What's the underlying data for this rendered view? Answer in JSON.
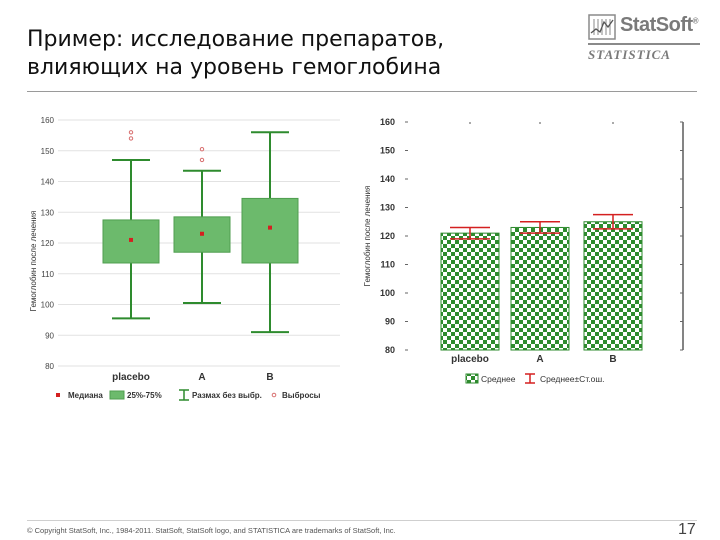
{
  "header": {
    "title_line1": "Пример: исследование препаратов,",
    "title_line2": "влияющих на уровень гемоглобина"
  },
  "logo": {
    "brand": "StatSoft",
    "registered": "®",
    "product": "STATISTICA"
  },
  "footer": {
    "copyright": "© Copyright StatSoft, Inc., 1984-2011. StatSoft, StatSoft logo, and STATISTICA are trademarks of StatSoft, Inc.",
    "page_number": "17"
  },
  "colors": {
    "green": "#2e8b2e",
    "box_fill": "#6cba6c",
    "red": "#d42020",
    "outlier": "#d87070"
  },
  "chart_data": [
    {
      "type": "box",
      "ylabel": "Гемоглобин после лечения",
      "ylim": [
        80,
        160
      ],
      "yticks": [
        80,
        90,
        100,
        110,
        120,
        130,
        140,
        150,
        160
      ],
      "categories": [
        "placebo",
        "A",
        "B"
      ],
      "boxes": [
        {
          "category": "placebo",
          "min": 95.5,
          "q1": 113.5,
          "median": 121,
          "q3": 127.5,
          "max": 147,
          "outliers": [
            154,
            156
          ]
        },
        {
          "category": "A",
          "min": 100.5,
          "q1": 117,
          "median": 123,
          "q3": 128.5,
          "max": 143.5,
          "outliers": [
            147,
            150.5
          ]
        },
        {
          "category": "B",
          "min": 91,
          "q1": 113.5,
          "median": 125,
          "q3": 134.5,
          "max": 156,
          "outliers": []
        }
      ],
      "legend": {
        "median": "Медиана",
        "box": "25%-75%",
        "range": "Размах без выбр.",
        "outliers": "Выбросы"
      }
    },
    {
      "type": "bar",
      "ylabel": "Гемоглобин после лечения",
      "ylim": [
        80,
        160
      ],
      "yticks": [
        80,
        90,
        100,
        110,
        120,
        130,
        140,
        150,
        160
      ],
      "categories": [
        "placebo",
        "A",
        "B"
      ],
      "values": [
        121,
        123,
        125
      ],
      "errors": [
        2,
        2,
        2.5
      ],
      "legend": {
        "mean": "Среднее",
        "error": "Среднее±Ст.ош."
      }
    }
  ]
}
